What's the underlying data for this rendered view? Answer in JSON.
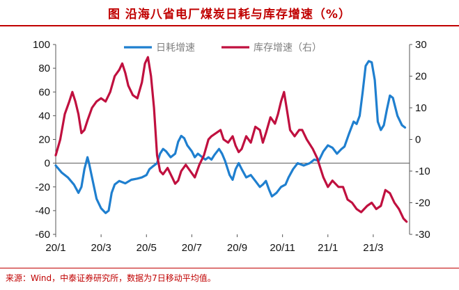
{
  "title": "图 沿海八省电厂煤炭日耗与库存增速（%）",
  "source": "来源：Wind，中泰证券研究所，数据为7日移动平均值。",
  "colors": {
    "blue": "#1f7fcf",
    "red": "#c0103f",
    "accent": "#c00000"
  },
  "chart_data": {
    "type": "line",
    "left_axis": {
      "min": -60,
      "max": 100,
      "ticks": [
        100,
        80,
        60,
        40,
        20,
        0,
        -20,
        -40,
        -60
      ]
    },
    "right_axis": {
      "min": -30,
      "max": 30,
      "ticks": [
        30,
        20,
        10,
        0,
        -10,
        -20,
        -30
      ]
    },
    "x_labels": [
      "20/1",
      "20/3",
      "20/5",
      "20/7",
      "20/9",
      "20/11",
      "21/1",
      "21/3"
    ],
    "grid": false,
    "legend_position": "top",
    "series": [
      {
        "name": "日耗增速",
        "axis": "left",
        "color": "#1f7fcf",
        "points": [
          [
            0.0,
            -2
          ],
          [
            0.2,
            -8
          ],
          [
            0.4,
            -12
          ],
          [
            0.6,
            -18
          ],
          [
            0.75,
            -25
          ],
          [
            0.85,
            -20
          ],
          [
            0.95,
            -5
          ],
          [
            1.05,
            5
          ],
          [
            1.1,
            0
          ],
          [
            1.2,
            -12
          ],
          [
            1.35,
            -30
          ],
          [
            1.5,
            -38
          ],
          [
            1.65,
            -42
          ],
          [
            1.75,
            -40
          ],
          [
            1.85,
            -25
          ],
          [
            1.95,
            -18
          ],
          [
            2.1,
            -15
          ],
          [
            2.3,
            -17
          ],
          [
            2.5,
            -14
          ],
          [
            2.7,
            -13
          ],
          [
            2.85,
            -12
          ],
          [
            3.0,
            -10
          ],
          [
            3.1,
            -5
          ],
          [
            3.2,
            -3
          ],
          [
            3.35,
            0
          ],
          [
            3.45,
            8
          ],
          [
            3.55,
            12
          ],
          [
            3.65,
            10
          ],
          [
            3.8,
            5
          ],
          [
            3.95,
            8
          ],
          [
            4.05,
            18
          ],
          [
            4.15,
            23
          ],
          [
            4.25,
            21
          ],
          [
            4.35,
            15
          ],
          [
            4.5,
            10
          ],
          [
            4.6,
            5
          ],
          [
            4.7,
            8
          ],
          [
            4.85,
            5
          ],
          [
            4.95,
            3
          ],
          [
            5.05,
            5
          ],
          [
            5.15,
            3
          ],
          [
            5.25,
            7
          ],
          [
            5.4,
            12
          ],
          [
            5.5,
            8
          ],
          [
            5.6,
            2
          ],
          [
            5.75,
            -10
          ],
          [
            5.85,
            -14
          ],
          [
            5.95,
            -5
          ],
          [
            6.05,
            0
          ],
          [
            6.15,
            -5
          ],
          [
            6.3,
            -12
          ],
          [
            6.45,
            -10
          ],
          [
            6.6,
            -15
          ],
          [
            6.75,
            -20
          ],
          [
            6.85,
            -18
          ],
          [
            6.95,
            -15
          ],
          [
            7.05,
            -22
          ],
          [
            7.15,
            -28
          ],
          [
            7.3,
            -25
          ],
          [
            7.45,
            -20
          ],
          [
            7.6,
            -18
          ],
          [
            7.7,
            -12
          ],
          [
            7.85,
            -5
          ],
          [
            8.0,
            0
          ],
          [
            8.2,
            -2
          ],
          [
            8.4,
            0
          ],
          [
            8.55,
            3
          ],
          [
            8.7,
            2
          ],
          [
            8.85,
            10
          ],
          [
            9.0,
            15
          ],
          [
            9.15,
            13
          ],
          [
            9.3,
            8
          ],
          [
            9.45,
            12
          ],
          [
            9.55,
            14
          ],
          [
            9.7,
            25
          ],
          [
            9.85,
            35
          ],
          [
            9.95,
            33
          ],
          [
            10.05,
            40
          ],
          [
            10.15,
            60
          ],
          [
            10.25,
            82
          ],
          [
            10.35,
            86
          ],
          [
            10.45,
            85
          ],
          [
            10.55,
            70
          ],
          [
            10.65,
            35
          ],
          [
            10.75,
            28
          ],
          [
            10.85,
            32
          ],
          [
            10.95,
            45
          ],
          [
            11.05,
            57
          ],
          [
            11.15,
            55
          ],
          [
            11.3,
            40
          ],
          [
            11.45,
            32
          ],
          [
            11.55,
            30
          ]
        ]
      },
      {
        "name": "库存增速（右）",
        "axis": "right",
        "color": "#c0103f",
        "points": [
          [
            0.0,
            -5
          ],
          [
            0.15,
            0
          ],
          [
            0.3,
            8
          ],
          [
            0.45,
            12
          ],
          [
            0.55,
            15
          ],
          [
            0.65,
            12
          ],
          [
            0.75,
            8
          ],
          [
            0.85,
            2
          ],
          [
            0.95,
            3
          ],
          [
            1.05,
            6
          ],
          [
            1.2,
            10
          ],
          [
            1.35,
            12
          ],
          [
            1.5,
            13
          ],
          [
            1.65,
            12
          ],
          [
            1.8,
            15
          ],
          [
            1.95,
            20
          ],
          [
            2.1,
            22
          ],
          [
            2.2,
            24
          ],
          [
            2.3,
            21
          ],
          [
            2.4,
            17
          ],
          [
            2.55,
            14
          ],
          [
            2.7,
            13
          ],
          [
            2.85,
            18
          ],
          [
            2.95,
            24
          ],
          [
            3.05,
            26
          ],
          [
            3.15,
            20
          ],
          [
            3.25,
            10
          ],
          [
            3.35,
            -5
          ],
          [
            3.45,
            -10
          ],
          [
            3.55,
            -11
          ],
          [
            3.7,
            -9
          ],
          [
            3.85,
            -12
          ],
          [
            3.95,
            -14
          ],
          [
            4.05,
            -13
          ],
          [
            4.15,
            -10
          ],
          [
            4.3,
            -8
          ],
          [
            4.45,
            -10
          ],
          [
            4.6,
            -12
          ],
          [
            4.75,
            -8
          ],
          [
            4.9,
            -5
          ],
          [
            5.05,
            0
          ],
          [
            5.15,
            1
          ],
          [
            5.3,
            2
          ],
          [
            5.45,
            3
          ],
          [
            5.55,
            0
          ],
          [
            5.7,
            -1
          ],
          [
            5.85,
            1
          ],
          [
            5.95,
            -2
          ],
          [
            6.05,
            -4
          ],
          [
            6.15,
            -3
          ],
          [
            6.3,
            1
          ],
          [
            6.45,
            -1
          ],
          [
            6.6,
            4
          ],
          [
            6.75,
            3
          ],
          [
            6.85,
            -1
          ],
          [
            6.95,
            2
          ],
          [
            7.1,
            7
          ],
          [
            7.25,
            5
          ],
          [
            7.35,
            8
          ],
          [
            7.45,
            12
          ],
          [
            7.55,
            15
          ],
          [
            7.65,
            9
          ],
          [
            7.75,
            3
          ],
          [
            7.9,
            1
          ],
          [
            8.05,
            3
          ],
          [
            8.15,
            3
          ],
          [
            8.3,
            0
          ],
          [
            8.5,
            -3
          ],
          [
            8.65,
            -6
          ],
          [
            8.75,
            -9
          ],
          [
            8.85,
            -12
          ],
          [
            9.0,
            -15
          ],
          [
            9.15,
            -13
          ],
          [
            9.35,
            -15
          ],
          [
            9.5,
            -15
          ],
          [
            9.65,
            -19
          ],
          [
            9.8,
            -20
          ],
          [
            9.95,
            -22
          ],
          [
            10.1,
            -23
          ],
          [
            10.3,
            -21
          ],
          [
            10.45,
            -20
          ],
          [
            10.6,
            -22
          ],
          [
            10.75,
            -21
          ],
          [
            10.9,
            -16
          ],
          [
            11.05,
            -17
          ],
          [
            11.2,
            -20
          ],
          [
            11.35,
            -22
          ],
          [
            11.5,
            -25
          ],
          [
            11.6,
            -26
          ]
        ]
      }
    ]
  }
}
